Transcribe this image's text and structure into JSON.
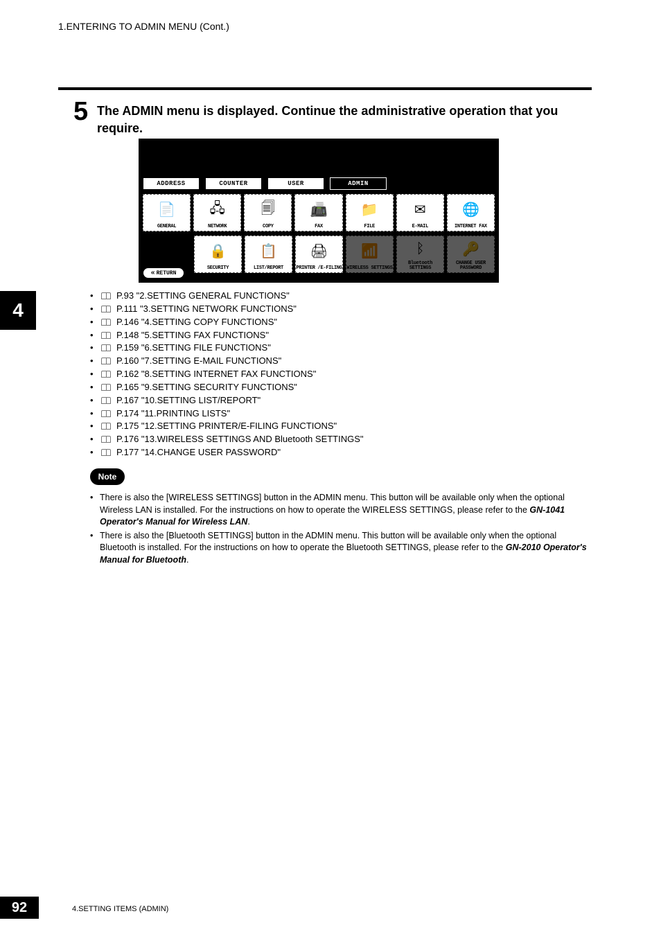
{
  "header": {
    "breadcrumb": "1.ENTERING TO ADMIN MENU (Cont.)"
  },
  "chapter": {
    "tab_number": "4"
  },
  "step": {
    "number": "5",
    "text": "The ADMIN menu is displayed.  Continue the administrative operation that you require."
  },
  "panel": {
    "tabs": [
      {
        "label": "ADDRESS",
        "active": false
      },
      {
        "label": "COUNTER",
        "active": false
      },
      {
        "label": "USER",
        "active": false
      },
      {
        "label": "ADMIN",
        "active": true
      }
    ],
    "icons_row1": [
      {
        "name": "general",
        "label": "GENERAL",
        "glyph": "📄",
        "disabled": false
      },
      {
        "name": "network",
        "label": "NETWORK",
        "glyph": "🖧",
        "disabled": false
      },
      {
        "name": "copy",
        "label": "COPY",
        "glyph": "🗐",
        "disabled": false
      },
      {
        "name": "fax",
        "label": "FAX",
        "glyph": "📠",
        "disabled": false
      },
      {
        "name": "file",
        "label": "FILE",
        "glyph": "📁",
        "disabled": false
      },
      {
        "name": "email",
        "label": "E-MAIL",
        "glyph": "✉",
        "disabled": false
      },
      {
        "name": "ifax",
        "label": "INTERNET FAX",
        "glyph": "🌐",
        "disabled": false
      }
    ],
    "icons_row2": [
      {
        "name": "security",
        "label": "SECURITY",
        "glyph": "🔒",
        "disabled": false
      },
      {
        "name": "listreport",
        "label": "LIST/REPORT",
        "glyph": "📋",
        "disabled": false
      },
      {
        "name": "printer",
        "label": "PRINTER\n/E-FILING",
        "glyph": "🖨",
        "disabled": false
      },
      {
        "name": "wireless",
        "label": "WIRELESS\nSETTINGS",
        "glyph": "📶",
        "disabled": true
      },
      {
        "name": "bluetooth",
        "label": "Bluetooth\nSETTINGS",
        "glyph": "ᛒ",
        "disabled": true
      },
      {
        "name": "chguser",
        "label": "CHANGE USER\nPASSWORD",
        "glyph": "🔑",
        "disabled": true
      }
    ],
    "return_label": "RETURN"
  },
  "refs": [
    "P.93 \"2.SETTING GENERAL FUNCTIONS\"",
    "P.111 \"3.SETTING NETWORK FUNCTIONS\"",
    "P.146 \"4.SETTING COPY FUNCTIONS\"",
    "P.148 \"5.SETTING FAX FUNCTIONS\"",
    "P.159 \"6.SETTING FILE FUNCTIONS\"",
    "P.160 \"7.SETTING E-MAIL FUNCTIONS\"",
    "P.162 \"8.SETTING INTERNET FAX FUNCTIONS\"",
    "P.165 \"9.SETTING SECURITY FUNCTIONS\"",
    "P.167 \"10.SETTING LIST/REPORT\"",
    "P.174 \"11.PRINTING LISTS\"",
    "P.175 \"12.SETTING PRINTER/E-FILING FUNCTIONS\"",
    "P.176 \"13.WIRELESS SETTINGS AND Bluetooth SETTINGS\"",
    "P.177 \"14.CHANGE USER PASSWORD\""
  ],
  "note": {
    "label": "Note",
    "items": [
      {
        "pre": "There is also the [WIRELESS SETTINGS] button in the ADMIN menu.  This button will be available only when the optional Wireless LAN is installed.  For the instructions on how to operate the WIRELESS SETTINGS, please refer to the ",
        "bi": "GN-1041 Operator's Manual for Wireless LAN",
        "post": "."
      },
      {
        "pre": "There is also the [Bluetooth SETTINGS] button in the ADMIN menu.  This button will be available only when the optional Bluetooth is installed.  For the instructions on how to operate the Bluetooth SETTINGS, please refer to the ",
        "bi": "GN-2010 Operator's Manual for Bluetooth",
        "post": "."
      }
    ]
  },
  "footer": {
    "page": "92",
    "section": "4.SETTING ITEMS (ADMIN)"
  },
  "colors": {
    "text": "#000000",
    "bg": "#ffffff",
    "panel_bg": "#000000",
    "disabled_opacity": 0.35
  }
}
